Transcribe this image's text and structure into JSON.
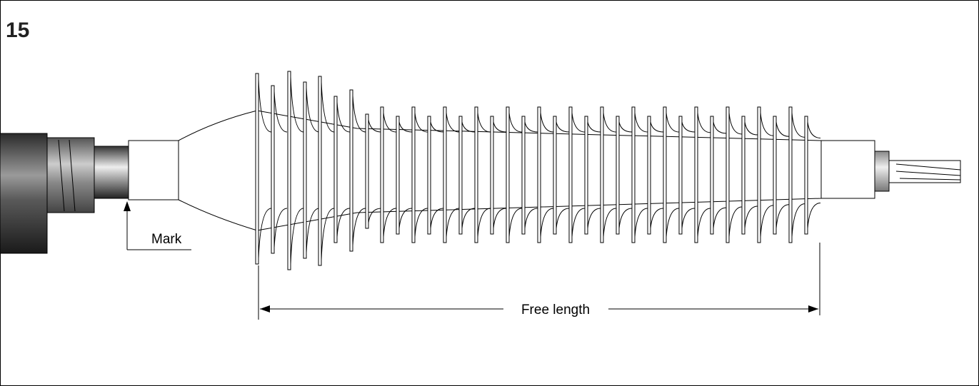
{
  "figure_number": "15",
  "labels": {
    "mark": "Mark",
    "free_length": "Free length"
  }
}
